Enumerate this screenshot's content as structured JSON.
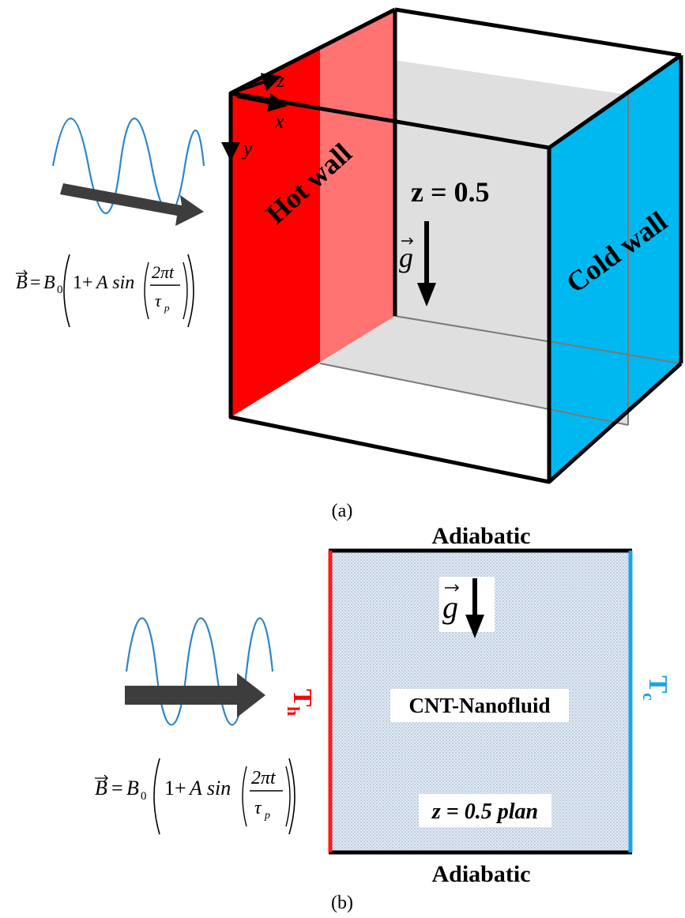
{
  "panel_a": {
    "caption": "(a)",
    "hot_wall_label": "Hot wall",
    "cold_wall_label": "Cold wall",
    "plane_label": "z = 0.5",
    "gravity_label": "g",
    "axes": {
      "z": "z",
      "x": "x",
      "y": "y"
    },
    "field_equation": {
      "lhs": "B",
      "b0": "B",
      "b0_sub": "0",
      "one_plus": "1+",
      "a_sin": "A sin",
      "num": "2πt",
      "den": "τ",
      "den_sub": "p"
    }
  },
  "panel_b": {
    "caption": "(b)",
    "top_label": "Adiabatic",
    "bottom_label": "Adiabatic",
    "hot_temp": "T",
    "hot_temp_sub": "h",
    "cold_temp": "T",
    "cold_temp_sub": "c",
    "fluid_label": "CNT-Nanofluid",
    "plane_label": "z = 0.5 plan",
    "gravity_label": "g",
    "field_equation": {
      "lhs": "B",
      "b0": "B",
      "b0_sub": "0",
      "one_plus": "1+",
      "a_sin": "A sin",
      "num": "2πt",
      "den": "τ",
      "den_sub": "p"
    }
  },
  "colors": {
    "hot": "#ff0000",
    "cold": "#00b0f0",
    "hot_line": "#ff1a1a",
    "cold_line": "#1ea4e6",
    "wave": "#2e86c8",
    "arrow": "#3a3a3a",
    "plane": "#d3d3d3",
    "fluid": "#cfdced"
  }
}
